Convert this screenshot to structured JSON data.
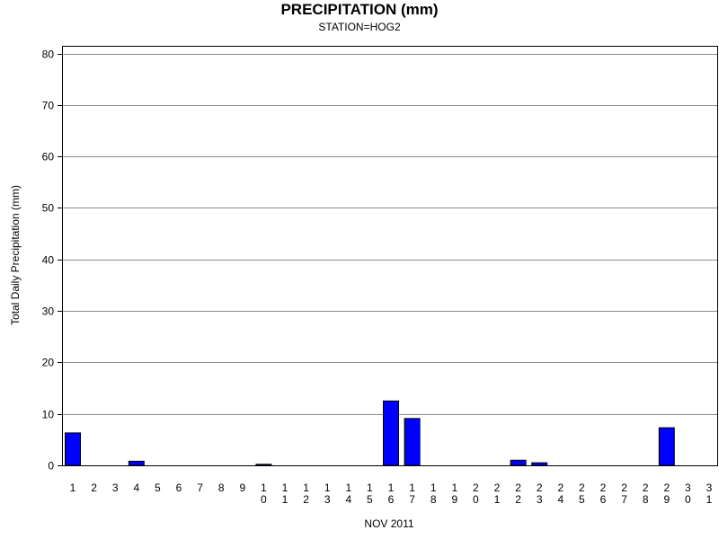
{
  "chart_data": {
    "type": "bar",
    "title": "PRECIPITATION (mm)",
    "subtitle": "STATION=HOG2",
    "xlabel": "NOV 2011",
    "ylabel": "Total Daily Precipitation (mm)",
    "ylim": [
      0,
      81.5
    ],
    "yticks": [
      0,
      10,
      20,
      30,
      40,
      50,
      60,
      70,
      80
    ],
    "grid": true,
    "bar_color": "#0000ff",
    "categories": [
      "1",
      "2",
      "3",
      "4",
      "5",
      "6",
      "7",
      "8",
      "9",
      "10",
      "11",
      "12",
      "13",
      "14",
      "15",
      "16",
      "17",
      "18",
      "19",
      "20",
      "21",
      "22",
      "23",
      "24",
      "25",
      "26",
      "27",
      "28",
      "29",
      "30",
      "31"
    ],
    "values": [
      6.3,
      0,
      0,
      0.8,
      0,
      0,
      0,
      0,
      0,
      0.2,
      0,
      0,
      0,
      0,
      0,
      12.5,
      9.1,
      0,
      0,
      0,
      0,
      1.0,
      0.5,
      0,
      0,
      0,
      0,
      0,
      7.3,
      0,
      0
    ]
  }
}
